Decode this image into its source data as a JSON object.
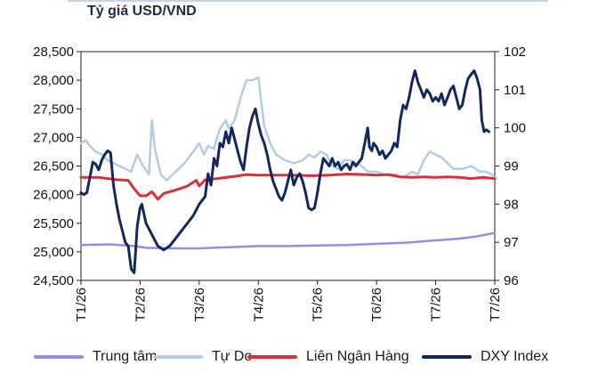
{
  "title": "Tỷ giá USD/VND",
  "chart_data": {
    "type": "line",
    "title": "Tỷ giá USD/VND",
    "x_labels": [
      "T1/26",
      "T2/26",
      "T3/26",
      "T4/26",
      "T5/26",
      "T6/26",
      "T7/26",
      "T7/26"
    ],
    "x_range": [
      0,
      7
    ],
    "y_left": {
      "min": 24500,
      "max": 28500,
      "ticks": [
        24500,
        25000,
        25500,
        26000,
        26500,
        27000,
        27500,
        28000,
        28500
      ],
      "tick_labels": [
        "24,500",
        "25,000",
        "25,500",
        "26,000",
        "26,500",
        "27,000",
        "27,500",
        "28,000",
        "28,500"
      ]
    },
    "y_right": {
      "min": 96,
      "max": 102,
      "ticks": [
        96,
        97,
        98,
        99,
        100,
        101,
        102
      ],
      "tick_labels": [
        "96",
        "97",
        "98",
        "99",
        "100",
        "101",
        "102"
      ]
    },
    "grid": false,
    "legend_position": "bottom",
    "series": [
      {
        "name": "Trung tâm",
        "axis": "left",
        "color": "#9b8ae0",
        "width": 2.5,
        "points": [
          [
            0,
            25120
          ],
          [
            0.5,
            25130
          ],
          [
            0.9,
            25100
          ],
          [
            1.1,
            25070
          ],
          [
            1.5,
            25060
          ],
          [
            2.0,
            25060
          ],
          [
            2.5,
            25080
          ],
          [
            3.0,
            25100
          ],
          [
            3.5,
            25100
          ],
          [
            4.0,
            25110
          ],
          [
            4.5,
            25120
          ],
          [
            5.0,
            25140
          ],
          [
            5.5,
            25160
          ],
          [
            6.0,
            25200
          ],
          [
            6.4,
            25230
          ],
          [
            6.7,
            25270
          ],
          [
            7.0,
            25330
          ]
        ]
      },
      {
        "name": "Tự Do",
        "axis": "left",
        "color": "#b4cbe8",
        "width": 2.5,
        "points": [
          [
            0,
            26900
          ],
          [
            0.08,
            26950
          ],
          [
            0.15,
            26850
          ],
          [
            0.25,
            26750
          ],
          [
            0.35,
            26700
          ],
          [
            0.45,
            26600
          ],
          [
            0.55,
            26550
          ],
          [
            0.65,
            26500
          ],
          [
            0.75,
            26450
          ],
          [
            0.85,
            26400
          ],
          [
            0.95,
            26700
          ],
          [
            1.05,
            26500
          ],
          [
            1.15,
            26350
          ],
          [
            1.2,
            27300
          ],
          [
            1.25,
            26800
          ],
          [
            1.35,
            26350
          ],
          [
            1.45,
            26250
          ],
          [
            1.6,
            26400
          ],
          [
            1.75,
            26550
          ],
          [
            1.9,
            26750
          ],
          [
            2.0,
            26900
          ],
          [
            2.08,
            26700
          ],
          [
            2.15,
            26850
          ],
          [
            2.25,
            26800
          ],
          [
            2.35,
            27150
          ],
          [
            2.45,
            27300
          ],
          [
            2.5,
            27150
          ],
          [
            2.6,
            27300
          ],
          [
            2.7,
            27700
          ],
          [
            2.8,
            28000
          ],
          [
            2.9,
            28000
          ],
          [
            3.0,
            28050
          ],
          [
            3.1,
            27200
          ],
          [
            3.2,
            26900
          ],
          [
            3.3,
            26700
          ],
          [
            3.45,
            26600
          ],
          [
            3.6,
            26550
          ],
          [
            3.75,
            26600
          ],
          [
            3.85,
            26700
          ],
          [
            3.95,
            26650
          ],
          [
            4.05,
            26750
          ],
          [
            4.15,
            26700
          ],
          [
            4.25,
            26500
          ],
          [
            4.35,
            26450
          ],
          [
            4.45,
            26600
          ],
          [
            4.55,
            26600
          ],
          [
            4.65,
            26550
          ],
          [
            4.75,
            26500
          ],
          [
            4.85,
            26400
          ],
          [
            5.0,
            26400
          ],
          [
            5.15,
            26350
          ],
          [
            5.3,
            26350
          ],
          [
            5.45,
            26300
          ],
          [
            5.6,
            26400
          ],
          [
            5.7,
            26350
          ],
          [
            5.8,
            26600
          ],
          [
            5.9,
            26750
          ],
          [
            6.0,
            26700
          ],
          [
            6.1,
            26650
          ],
          [
            6.2,
            26550
          ],
          [
            6.3,
            26450
          ],
          [
            6.45,
            26450
          ],
          [
            6.6,
            26500
          ],
          [
            6.75,
            26400
          ],
          [
            6.85,
            26400
          ],
          [
            6.95,
            26350
          ],
          [
            7.0,
            26300
          ]
        ]
      },
      {
        "name": "Liên Ngân Hàng",
        "axis": "left",
        "color": "#d8303a",
        "width": 3,
        "points": [
          [
            0,
            26300
          ],
          [
            0.3,
            26300
          ],
          [
            0.6,
            26260
          ],
          [
            0.8,
            26250
          ],
          [
            0.9,
            26100
          ],
          [
            1.0,
            25980
          ],
          [
            1.1,
            25980
          ],
          [
            1.2,
            26050
          ],
          [
            1.3,
            25920
          ],
          [
            1.4,
            26020
          ],
          [
            1.6,
            26080
          ],
          [
            1.8,
            26150
          ],
          [
            1.95,
            26250
          ],
          [
            2.0,
            26150
          ],
          [
            2.1,
            26260
          ],
          [
            2.3,
            26280
          ],
          [
            2.6,
            26320
          ],
          [
            2.8,
            26350
          ],
          [
            3.0,
            26340
          ],
          [
            3.3,
            26340
          ],
          [
            3.6,
            26340
          ],
          [
            3.9,
            26330
          ],
          [
            4.2,
            26340
          ],
          [
            4.5,
            26360
          ],
          [
            4.8,
            26350
          ],
          [
            5.0,
            26340
          ],
          [
            5.2,
            26350
          ],
          [
            5.4,
            26310
          ],
          [
            5.6,
            26300
          ],
          [
            5.8,
            26310
          ],
          [
            6.0,
            26300
          ],
          [
            6.2,
            26310
          ],
          [
            6.4,
            26300
          ],
          [
            6.6,
            26280
          ],
          [
            6.8,
            26300
          ],
          [
            7.0,
            26280
          ]
        ]
      },
      {
        "name": "DXY Index",
        "axis": "right",
        "color": "#13285e",
        "width": 3,
        "points": [
          [
            0,
            98.3
          ],
          [
            0.05,
            98.25
          ],
          [
            0.1,
            98.3
          ],
          [
            0.15,
            98.7
          ],
          [
            0.2,
            99.1
          ],
          [
            0.25,
            99.05
          ],
          [
            0.3,
            98.9
          ],
          [
            0.35,
            99.15
          ],
          [
            0.4,
            99.3
          ],
          [
            0.45,
            99.4
          ],
          [
            0.5,
            99.35
          ],
          [
            0.55,
            98.5
          ],
          [
            0.6,
            98.0
          ],
          [
            0.65,
            97.6
          ],
          [
            0.7,
            97.3
          ],
          [
            0.75,
            97.0
          ],
          [
            0.8,
            96.9
          ],
          [
            0.85,
            96.3
          ],
          [
            0.9,
            96.2
          ],
          [
            0.93,
            96.9
          ],
          [
            0.95,
            97.4
          ],
          [
            1.0,
            97.9
          ],
          [
            1.03,
            98.0
          ],
          [
            1.1,
            97.5
          ],
          [
            1.2,
            97.2
          ],
          [
            1.3,
            96.9
          ],
          [
            1.4,
            96.8
          ],
          [
            1.5,
            96.9
          ],
          [
            1.6,
            97.1
          ],
          [
            1.7,
            97.3
          ],
          [
            1.8,
            97.5
          ],
          [
            1.9,
            97.7
          ],
          [
            2.0,
            98.0
          ],
          [
            2.1,
            98.2
          ],
          [
            2.15,
            98.8
          ],
          [
            2.2,
            98.5
          ],
          [
            2.25,
            99.2
          ],
          [
            2.3,
            99.0
          ],
          [
            2.35,
            99.6
          ],
          [
            2.4,
            99.5
          ],
          [
            2.45,
            99.9
          ],
          [
            2.5,
            99.6
          ],
          [
            2.55,
            100.0
          ],
          [
            2.6,
            99.7
          ],
          [
            2.65,
            99.4
          ],
          [
            2.7,
            99.1
          ],
          [
            2.75,
            98.9
          ],
          [
            2.8,
            99.5
          ],
          [
            2.85,
            100.0
          ],
          [
            2.9,
            100.3
          ],
          [
            2.95,
            100.5
          ],
          [
            3.0,
            100.1
          ],
          [
            3.05,
            99.8
          ],
          [
            3.1,
            99.6
          ],
          [
            3.15,
            99.3
          ],
          [
            3.2,
            98.9
          ],
          [
            3.25,
            98.6
          ],
          [
            3.3,
            98.4
          ],
          [
            3.35,
            98.2
          ],
          [
            3.4,
            98.1
          ],
          [
            3.45,
            98.3
          ],
          [
            3.5,
            98.6
          ],
          [
            3.55,
            98.9
          ],
          [
            3.6,
            98.5
          ],
          [
            3.65,
            98.7
          ],
          [
            3.7,
            98.8
          ],
          [
            3.75,
            98.6
          ],
          [
            3.8,
            98.3
          ],
          [
            3.85,
            97.9
          ],
          [
            3.9,
            97.85
          ],
          [
            3.95,
            97.9
          ],
          [
            4.0,
            98.3
          ],
          [
            4.05,
            98.8
          ],
          [
            4.1,
            99.2
          ],
          [
            4.15,
            99.1
          ],
          [
            4.2,
            99.0
          ],
          [
            4.25,
            99.2
          ],
          [
            4.3,
            99.0
          ],
          [
            4.35,
            99.1
          ],
          [
            4.4,
            98.9
          ],
          [
            4.45,
            99.0
          ],
          [
            4.5,
            99.05
          ],
          [
            4.55,
            98.9
          ],
          [
            4.6,
            99.1
          ],
          [
            4.65,
            99.0
          ],
          [
            4.7,
            99.1
          ],
          [
            4.75,
            99.2
          ],
          [
            4.8,
            99.6
          ],
          [
            4.85,
            100.0
          ],
          [
            4.88,
            99.5
          ],
          [
            4.92,
            99.4
          ],
          [
            4.95,
            99.6
          ],
          [
            5.0,
            99.5
          ],
          [
            5.05,
            99.3
          ],
          [
            5.1,
            99.4
          ],
          [
            5.15,
            99.2
          ],
          [
            5.2,
            99.3
          ],
          [
            5.25,
            99.4
          ],
          [
            5.3,
            99.6
          ],
          [
            5.35,
            99.5
          ],
          [
            5.4,
            100.2
          ],
          [
            5.45,
            100.6
          ],
          [
            5.5,
            100.5
          ],
          [
            5.55,
            100.8
          ],
          [
            5.6,
            101.2
          ],
          [
            5.65,
            101.5
          ],
          [
            5.7,
            101.2
          ],
          [
            5.75,
            101.0
          ],
          [
            5.8,
            100.8
          ],
          [
            5.85,
            101.0
          ],
          [
            5.9,
            100.9
          ],
          [
            5.95,
            100.7
          ],
          [
            6.0,
            100.8
          ],
          [
            6.05,
            100.7
          ],
          [
            6.1,
            100.9
          ],
          [
            6.15,
            100.6
          ],
          [
            6.2,
            100.8
          ],
          [
            6.25,
            101.0
          ],
          [
            6.3,
            101.1
          ],
          [
            6.35,
            100.8
          ],
          [
            6.4,
            100.5
          ],
          [
            6.45,
            100.6
          ],
          [
            6.5,
            101.0
          ],
          [
            6.55,
            101.3
          ],
          [
            6.6,
            101.4
          ],
          [
            6.65,
            101.5
          ],
          [
            6.7,
            101.3
          ],
          [
            6.75,
            101.0
          ],
          [
            6.78,
            100.2
          ],
          [
            6.82,
            99.9
          ],
          [
            6.86,
            99.95
          ],
          [
            6.9,
            99.9
          ]
        ]
      }
    ]
  },
  "legend": [
    {
      "label": "Trung tâm",
      "color": "#9b8ae0"
    },
    {
      "label": "Tự Do",
      "color": "#b4cbe8"
    },
    {
      "label": "Liên Ngân Hàng",
      "color": "#d8303a"
    },
    {
      "label": "DXY Index",
      "color": "#13285e"
    }
  ]
}
